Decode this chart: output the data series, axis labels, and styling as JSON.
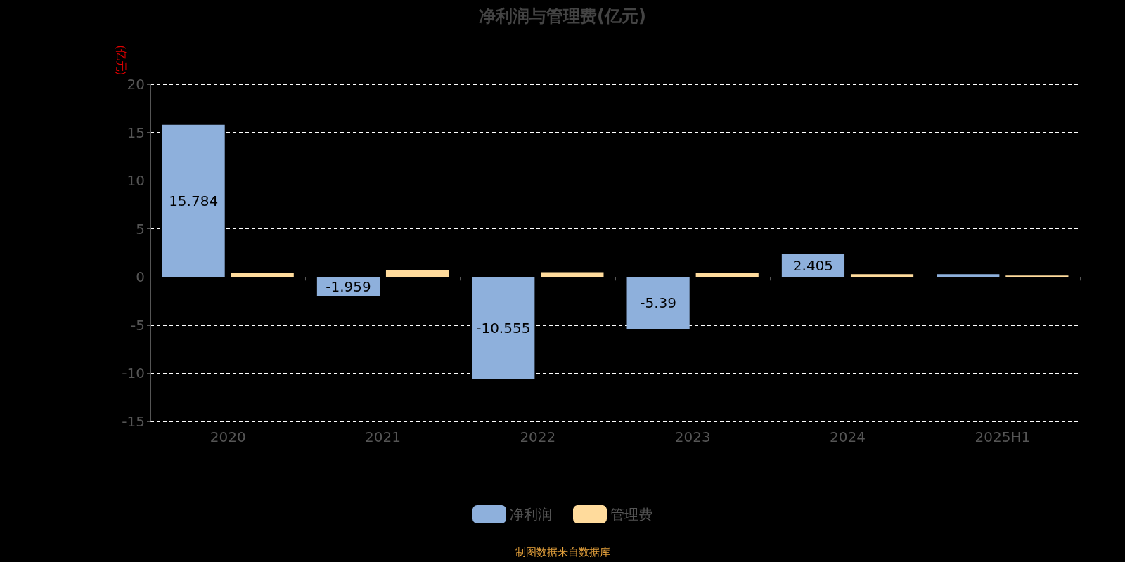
{
  "chart_data": {
    "type": "bar",
    "title": "净利润与管理费(亿元)",
    "ylabel": "(亿元)",
    "categories": [
      "2020",
      "2021",
      "2022",
      "2023",
      "2024",
      "2025H1"
    ],
    "series": [
      {
        "name": "净利润",
        "color": "#8eb0dc",
        "values": [
          15.784,
          -1.959,
          -10.555,
          -5.39,
          2.405,
          0.3
        ],
        "value_labels": [
          "15.784",
          "-1.959",
          "-10.555",
          "-5.39",
          "2.405",
          null
        ]
      },
      {
        "name": "管理费",
        "color": "#ffdb9c",
        "values": [
          0.45,
          0.75,
          0.5,
          0.4,
          0.3,
          0.15
        ]
      }
    ],
    "ylim": [
      -15,
      20
    ],
    "yticks": [
      -15,
      -10,
      -5,
      0,
      5,
      10,
      15,
      20
    ],
    "grid": "y",
    "legend": "bottom",
    "annotations": [
      "制图数据来自数据库"
    ]
  }
}
